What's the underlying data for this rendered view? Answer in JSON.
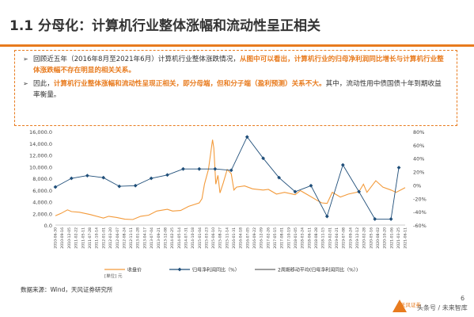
{
  "header": {
    "title": "1.1 分母化：计算机行业整体涨幅和流动性呈正相关"
  },
  "notes": {
    "p1_a": "回顾近五年（2016年8月至2021年6月）计算机行业整体涨跌情况，",
    "p1_b": "从图中可以看出，计算机行业的归母净利润同比增长与计算机行业整体涨跌幅不存在明显的相关关系。",
    "p2_a": "因此，",
    "p2_b": "计算机行业整体涨幅和流动性呈现正相关，即分母端，但和分子端（盈利预测）关系不大。",
    "p2_c": "其中，流动性用中债国债十年到期收益率衡量。"
  },
  "footer": {
    "source": "数据来源：Wind，天风证券研究所",
    "page": "6",
    "logo": "天风证券",
    "watermark": "头条号 / 未来智库"
  },
  "colors": {
    "accent": "#E87B1E",
    "price_line": "#F39A3A",
    "profit_line": "#1F4E79",
    "text": "#333333"
  },
  "chart_data": {
    "type": "line",
    "x_ticks": [
      "2010-06-30",
      "2010-09-16",
      "2010-12-05",
      "2011-02-22",
      "2011-05-11",
      "2011-07-28",
      "2011-10-14",
      "2012-01-01",
      "2012-03-20",
      "2012-06-07",
      "2012-08-24",
      "2012-11-11",
      "2013-01-28",
      "2013-04-17",
      "2013-07-04",
      "2013-09-21",
      "2013-12-08",
      "2014-02-25",
      "2014-05-14",
      "2014-07-31",
      "2014-10-18",
      "2015-01-04",
      "2015-03-23",
      "2015-06-10",
      "2015-08-27",
      "2015-11-14",
      "2016-01-31",
      "2016-04-18",
      "2016-07-05",
      "2016-09-22",
      "2016-12-09",
      "2017-02-26",
      "2017-05-15",
      "2017-08-01",
      "2017-10-19",
      "2018-01-05",
      "2018-03-24",
      "2018-06-11",
      "2018-08-28",
      "2018-11-15",
      "2019-02-01",
      "2019-04-21",
      "2019-07-08",
      "2019-09-24",
      "2019-12-12",
      "2020-02-28",
      "2020-05-16",
      "2020-08-02",
      "2020-10-20",
      "2021-01-06",
      "2021-03-25",
      "2021-06-11"
    ],
    "y_left": {
      "min": 0,
      "max": 16000,
      "ticks": [
        "0.0",
        "2,000.0",
        "4,000.0",
        "6,000.0",
        "8,000.0",
        "10,000.0",
        "12,000.0",
        "14,000.0",
        "16,000.0"
      ]
    },
    "y_right": {
      "min": -60,
      "max": 80,
      "ticks": [
        "-60%",
        "-40%",
        "-20%",
        "0%",
        "20%",
        "40%",
        "60%",
        "80%"
      ]
    },
    "series": [
      {
        "name": "收盘价",
        "axis": "left",
        "points": [
          [
            "2010-06-30",
            1600
          ],
          [
            "2010-09-01",
            2000
          ],
          [
            "2010-11-15",
            2600
          ],
          [
            "2011-01-01",
            2300
          ],
          [
            "2011-04-01",
            2200
          ],
          [
            "2011-08-01",
            1800
          ],
          [
            "2011-12-31",
            1200
          ],
          [
            "2012-03-01",
            1500
          ],
          [
            "2012-06-01",
            1300
          ],
          [
            "2012-09-01",
            1000
          ],
          [
            "2012-12-01",
            950
          ],
          [
            "2013-03-01",
            1500
          ],
          [
            "2013-06-01",
            1700
          ],
          [
            "2013-09-01",
            2400
          ],
          [
            "2013-12-31",
            2700
          ],
          [
            "2014-03-01",
            2400
          ],
          [
            "2014-06-01",
            2500
          ],
          [
            "2014-09-01",
            3200
          ],
          [
            "2014-12-31",
            3800
          ],
          [
            "2015-01-31",
            4500
          ],
          [
            "2015-03-01",
            7000
          ],
          [
            "2015-04-15",
            9500
          ],
          [
            "2015-06-01",
            14600
          ],
          [
            "2015-06-15",
            13200
          ],
          [
            "2015-07-08",
            7000
          ],
          [
            "2015-08-01",
            8500
          ],
          [
            "2015-08-25",
            5500
          ],
          [
            "2015-10-01",
            7200
          ],
          [
            "2015-11-15",
            9500
          ],
          [
            "2015-12-31",
            8800
          ],
          [
            "2016-01-31",
            6000
          ],
          [
            "2016-03-01",
            6500
          ],
          [
            "2016-06-01",
            6700
          ],
          [
            "2016-09-01",
            6200
          ],
          [
            "2016-12-31",
            6000
          ],
          [
            "2017-03-01",
            6100
          ],
          [
            "2017-06-01",
            5300
          ],
          [
            "2017-09-01",
            5600
          ],
          [
            "2017-12-31",
            5200
          ],
          [
            "2018-03-01",
            5900
          ],
          [
            "2018-06-01",
            5100
          ],
          [
            "2018-09-01",
            4300
          ],
          [
            "2018-10-31",
            3800
          ],
          [
            "2019-01-01",
            3700
          ],
          [
            "2019-03-01",
            5600
          ],
          [
            "2019-06-01",
            4800
          ],
          [
            "2019-09-01",
            5300
          ],
          [
            "2019-12-31",
            5700
          ],
          [
            "2020-02-20",
            7000
          ],
          [
            "2020-03-31",
            5600
          ],
          [
            "2020-07-10",
            7600
          ],
          [
            "2020-09-30",
            6500
          ],
          [
            "2020-12-31",
            6000
          ],
          [
            "2021-02-28",
            5600
          ],
          [
            "2021-06-11",
            6400
          ]
        ]
      },
      {
        "name": "归母净利润同比（%）",
        "axis": "right",
        "points": [
          [
            "2010-06-30",
            -3
          ],
          [
            "2010-12-31",
            10
          ],
          [
            "2011-06-30",
            14
          ],
          [
            "2011-12-31",
            11
          ],
          [
            "2012-06-30",
            -2
          ],
          [
            "2012-12-31",
            -1
          ],
          [
            "2013-06-30",
            10
          ],
          [
            "2013-12-31",
            15
          ],
          [
            "2014-06-30",
            24
          ],
          [
            "2014-12-31",
            24
          ],
          [
            "2015-06-30",
            24
          ],
          [
            "2015-12-31",
            22
          ],
          [
            "2016-06-30",
            72
          ],
          [
            "2016-12-31",
            40
          ],
          [
            "2017-06-30",
            11
          ],
          [
            "2017-12-31",
            -10
          ],
          [
            "2018-06-30",
            -1
          ],
          [
            "2018-12-31",
            -47
          ],
          [
            "2019-06-30",
            30
          ],
          [
            "2019-12-31",
            -10
          ],
          [
            "2020-06-30",
            -51
          ],
          [
            "2020-12-31",
            -51
          ],
          [
            "2021-03-31",
            26
          ]
        ]
      },
      {
        "name": "2周期移动平均(归母净利润同比（%）)",
        "axis": "right",
        "points": []
      }
    ],
    "legend": {
      "position": "bottom",
      "unit_note": "[单位] 元"
    },
    "grid": false
  }
}
